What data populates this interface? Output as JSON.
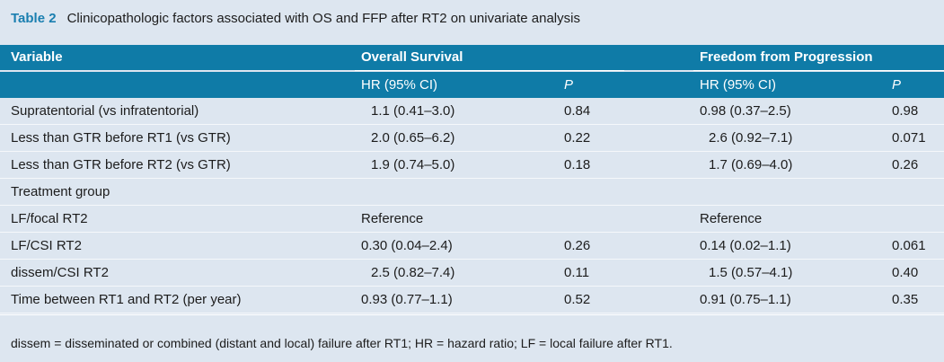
{
  "caption": {
    "label": "Table 2",
    "text": "Clinicopathologic factors associated with OS and FFP after RT2 on univariate analysis"
  },
  "header": {
    "variable": "Variable",
    "overall_survival": "Overall Survival",
    "freedom_from_progression": "Freedom from Progression",
    "hr_label": "HR (95% CI)",
    "p_label": "P"
  },
  "rows": [
    {
      "variable": "Supratentorial (vs infratentorial)",
      "os_hr": "1.1 (0.41–3.0)",
      "os_p": "0.84",
      "ffp_hr": "0.98 (0.37–2.5)",
      "ffp_p": "0.98"
    },
    {
      "variable": "Less than GTR before RT1 (vs GTR)",
      "os_hr": "2.0 (0.65–6.2)",
      "os_p": "0.22",
      "ffp_hr": "2.6 (0.92–7.1)",
      "ffp_p": "0.071"
    },
    {
      "variable": "Less than GTR before RT2 (vs GTR)",
      "os_hr": "1.9 (0.74–5.0)",
      "os_p": "0.18",
      "ffp_hr": "1.7 (0.69–4.0)",
      "ffp_p": "0.26"
    },
    {
      "variable": "Treatment group",
      "os_hr": "",
      "os_p": "",
      "ffp_hr": "",
      "ffp_p": ""
    },
    {
      "variable": "LF/focal RT2",
      "os_hr": "Reference",
      "os_p": "",
      "ffp_hr": "Reference",
      "ffp_p": ""
    },
    {
      "variable": "LF/CSI RT2",
      "os_hr": "0.30 (0.04–2.4)",
      "os_p": "0.26",
      "ffp_hr": "0.14 (0.02–1.1)",
      "ffp_p": "0.061"
    },
    {
      "variable": "dissem/CSI RT2",
      "os_hr": "2.5 (0.82–7.4)",
      "os_p": "0.11",
      "ffp_hr": "1.5 (0.57–4.1)",
      "ffp_p": "0.40"
    },
    {
      "variable": "Time between RT1 and RT2 (per year)",
      "os_hr": "0.93 (0.77–1.1)",
      "os_p": "0.52",
      "ffp_hr": "0.91 (0.75–1.1)",
      "ffp_p": "0.35"
    }
  ],
  "footnote": "dissem = disseminated or combined (distant and local) failure after RT1; HR = hazard ratio; LF = local failure after RT1."
}
